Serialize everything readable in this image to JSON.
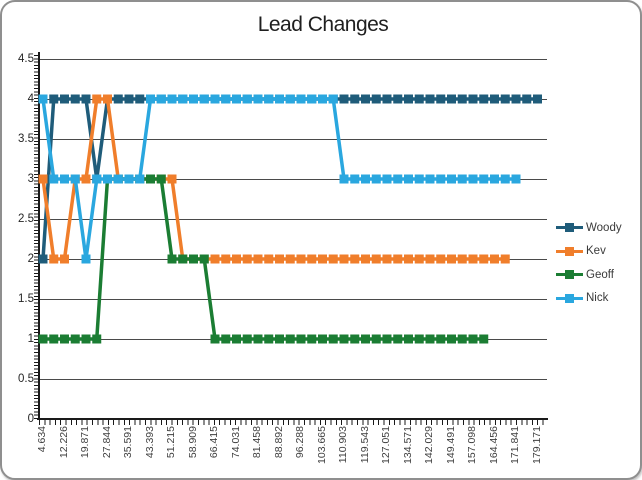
{
  "chart_data": {
    "type": "line",
    "title": "Lead Changes",
    "xlabel": "",
    "ylabel": "",
    "ylim": [
      0,
      4.5
    ],
    "ytick_step": 0.5,
    "y_tick_labels": [
      "0",
      "0.5",
      "1",
      "1.5",
      "2",
      "2.5",
      "3",
      "3.5",
      "4",
      "4.5"
    ],
    "grid": "horizontal",
    "legend_position": "right",
    "x_count": 47,
    "x_label_every": 2,
    "x_labels": [
      "4.634",
      "12.226",
      "19.871",
      "27.844",
      "35.591",
      "43.393",
      "51.215",
      "58.909",
      "66.415",
      "74.031",
      "81.458",
      "88.892",
      "96.288",
      "103.665",
      "110.903",
      "119.543",
      "127.051",
      "134.571",
      "142.029",
      "149.491",
      "157.098",
      "164.456",
      "171.841",
      "179.171"
    ],
    "series": [
      {
        "name": "Woody",
        "color": "#1F5C7A",
        "values": [
          2,
          4,
          4,
          4,
          4,
          3,
          4,
          4,
          4,
          4,
          4,
          4,
          4,
          4,
          4,
          4,
          4,
          4,
          4,
          4,
          4,
          4,
          4,
          4,
          4,
          4,
          4,
          4,
          4,
          4,
          4,
          4,
          4,
          4,
          4,
          4,
          4,
          4,
          4,
          4,
          4,
          4,
          4,
          4,
          4,
          4,
          4
        ]
      },
      {
        "name": "Kev",
        "color": "#F07E2B",
        "values": [
          3,
          2,
          2,
          3,
          3,
          4,
          4,
          3,
          3,
          3,
          3,
          3,
          3,
          2,
          2,
          2,
          2,
          2,
          2,
          2,
          2,
          2,
          2,
          2,
          2,
          2,
          2,
          2,
          2,
          2,
          2,
          2,
          2,
          2,
          2,
          2,
          2,
          2,
          2,
          2,
          2,
          2,
          2,
          2
        ]
      },
      {
        "name": "Geoff",
        "color": "#1B7D33",
        "values": [
          1,
          1,
          1,
          1,
          1,
          1,
          3,
          3,
          3,
          3,
          3,
          3,
          2,
          2,
          2,
          2,
          1,
          1,
          1,
          1,
          1,
          1,
          1,
          1,
          1,
          1,
          1,
          1,
          1,
          1,
          1,
          1,
          1,
          1,
          1,
          1,
          1,
          1,
          1,
          1,
          1,
          1
        ]
      },
      {
        "name": "Nick",
        "color": "#2AA7DF",
        "values": [
          4,
          3,
          3,
          3,
          2,
          3,
          3,
          3,
          3,
          3,
          4,
          4,
          4,
          4,
          4,
          4,
          4,
          4,
          4,
          4,
          4,
          4,
          4,
          4,
          4,
          4,
          4,
          4,
          3,
          3,
          3,
          3,
          3,
          3,
          3,
          3,
          3,
          3,
          3,
          3,
          3,
          3,
          3,
          3,
          3
        ]
      }
    ],
    "colors": {
      "gridline": "#4a4a4a",
      "axis": "#1a1a1a",
      "axis_text": "#3f3f3f",
      "title_text": "#1f1f1f"
    }
  }
}
